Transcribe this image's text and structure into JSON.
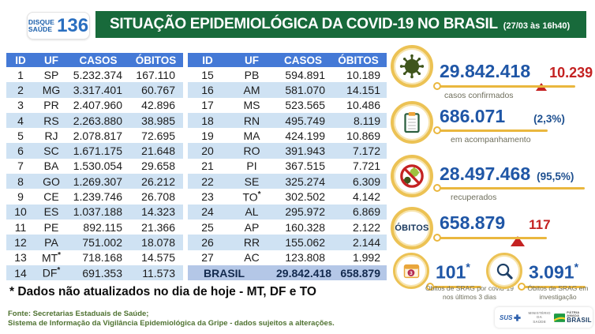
{
  "header": {
    "logo": {
      "word1": "DISQUE",
      "word2": "SAÚDE",
      "number": "136"
    },
    "title": "SITUAÇÃO EPIDEMIOLÓGICA DA COVID-19 NO BRASIL",
    "timestamp": "(27/03 às 16h40)"
  },
  "tables": {
    "headers": [
      "ID",
      "UF",
      "CASOS",
      "ÓBITOS"
    ],
    "left": [
      [
        "1",
        "SP",
        "5.232.374",
        "167.110"
      ],
      [
        "2",
        "MG",
        "3.317.401",
        "60.767"
      ],
      [
        "3",
        "PR",
        "2.407.960",
        "42.896"
      ],
      [
        "4",
        "RS",
        "2.263.880",
        "38.985"
      ],
      [
        "5",
        "RJ",
        "2.078.817",
        "72.695"
      ],
      [
        "6",
        "SC",
        "1.671.175",
        "21.648"
      ],
      [
        "7",
        "BA",
        "1.530.054",
        "29.658"
      ],
      [
        "8",
        "GO",
        "1.269.307",
        "26.212"
      ],
      [
        "9",
        "CE",
        "1.239.746",
        "26.708"
      ],
      [
        "10",
        "ES",
        "1.037.188",
        "14.323"
      ],
      [
        "11",
        "PE",
        "892.115",
        "21.366"
      ],
      [
        "12",
        "PA",
        "751.002",
        "18.078"
      ],
      [
        "13",
        "MT*",
        "718.168",
        "14.575"
      ],
      [
        "14",
        "DF*",
        "691.353",
        "11.573"
      ]
    ],
    "right": [
      [
        "15",
        "PB",
        "594.891",
        "10.189"
      ],
      [
        "16",
        "AM",
        "581.070",
        "14.151"
      ],
      [
        "17",
        "MS",
        "523.565",
        "10.486"
      ],
      [
        "18",
        "RN",
        "495.749",
        "8.119"
      ],
      [
        "19",
        "MA",
        "424.199",
        "10.869"
      ],
      [
        "20",
        "RO",
        "391.943",
        "7.172"
      ],
      [
        "21",
        "PI",
        "367.515",
        "7.721"
      ],
      [
        "22",
        "SE",
        "325.274",
        "6.309"
      ],
      [
        "23",
        "TO*",
        "302.502",
        "4.142"
      ],
      [
        "24",
        "AL",
        "295.972",
        "6.869"
      ],
      [
        "25",
        "AP",
        "160.328",
        "2.122"
      ],
      [
        "26",
        "RR",
        "155.062",
        "2.144"
      ],
      [
        "27",
        "AC",
        "123.808",
        "1.992"
      ]
    ],
    "total": {
      "label": "BRASIL",
      "casos": "29.842.418",
      "obitos": "658.879"
    }
  },
  "stats": [
    {
      "icon": "virus-icon",
      "value": "29.842.418",
      "delta": "10.239",
      "label": "casos confirmados"
    },
    {
      "icon": "clipboard-icon",
      "value": "686.071",
      "percent": "(2,3%)",
      "label": "em acompanhamento"
    },
    {
      "icon": "no-virus-icon",
      "value": "28.497.468",
      "percent": "(95,5%)",
      "label": "recuperados"
    },
    {
      "icon": "obitos-circle",
      "circle_label": "ÓBITOS",
      "value": "658.879",
      "delta": "117"
    },
    {
      "icon": "calendar-icon",
      "value": "101",
      "note": "*",
      "label": "Óbitos de SRAG por covid-19 nos últimos 3 dias"
    },
    {
      "icon": "magnifier-icon",
      "value": "3.091",
      "note": "*",
      "label": "Óbitos de SRAG em investigação"
    }
  ],
  "footnote": "* Dados não atualizados no dia de hoje - MT, DF e TO",
  "footer": {
    "line1": "Fonte: Secretarias Estaduais de Saúde;",
    "line2": "Sistema de Informação da Vigilância Epidemiológica da Gripe - dados sujeitos a alterações."
  },
  "logos": {
    "sus": "SUS",
    "ministry_line1": "MINISTÉRIO DA",
    "ministry_line2": "SAÚDE",
    "motto": "PÁTRIA AMADA",
    "brand": "BRASIL"
  },
  "colors": {
    "banner_green": "#186a3b",
    "table_header_blue": "#4479d6",
    "row_alt_blue": "#cfe2f3",
    "total_row_blue": "#b4c7e7",
    "stat_number_blue": "#1f56a6",
    "alert_red": "#c42222",
    "accent_yellow": "#ecc254",
    "footer_green": "#4f7231"
  }
}
